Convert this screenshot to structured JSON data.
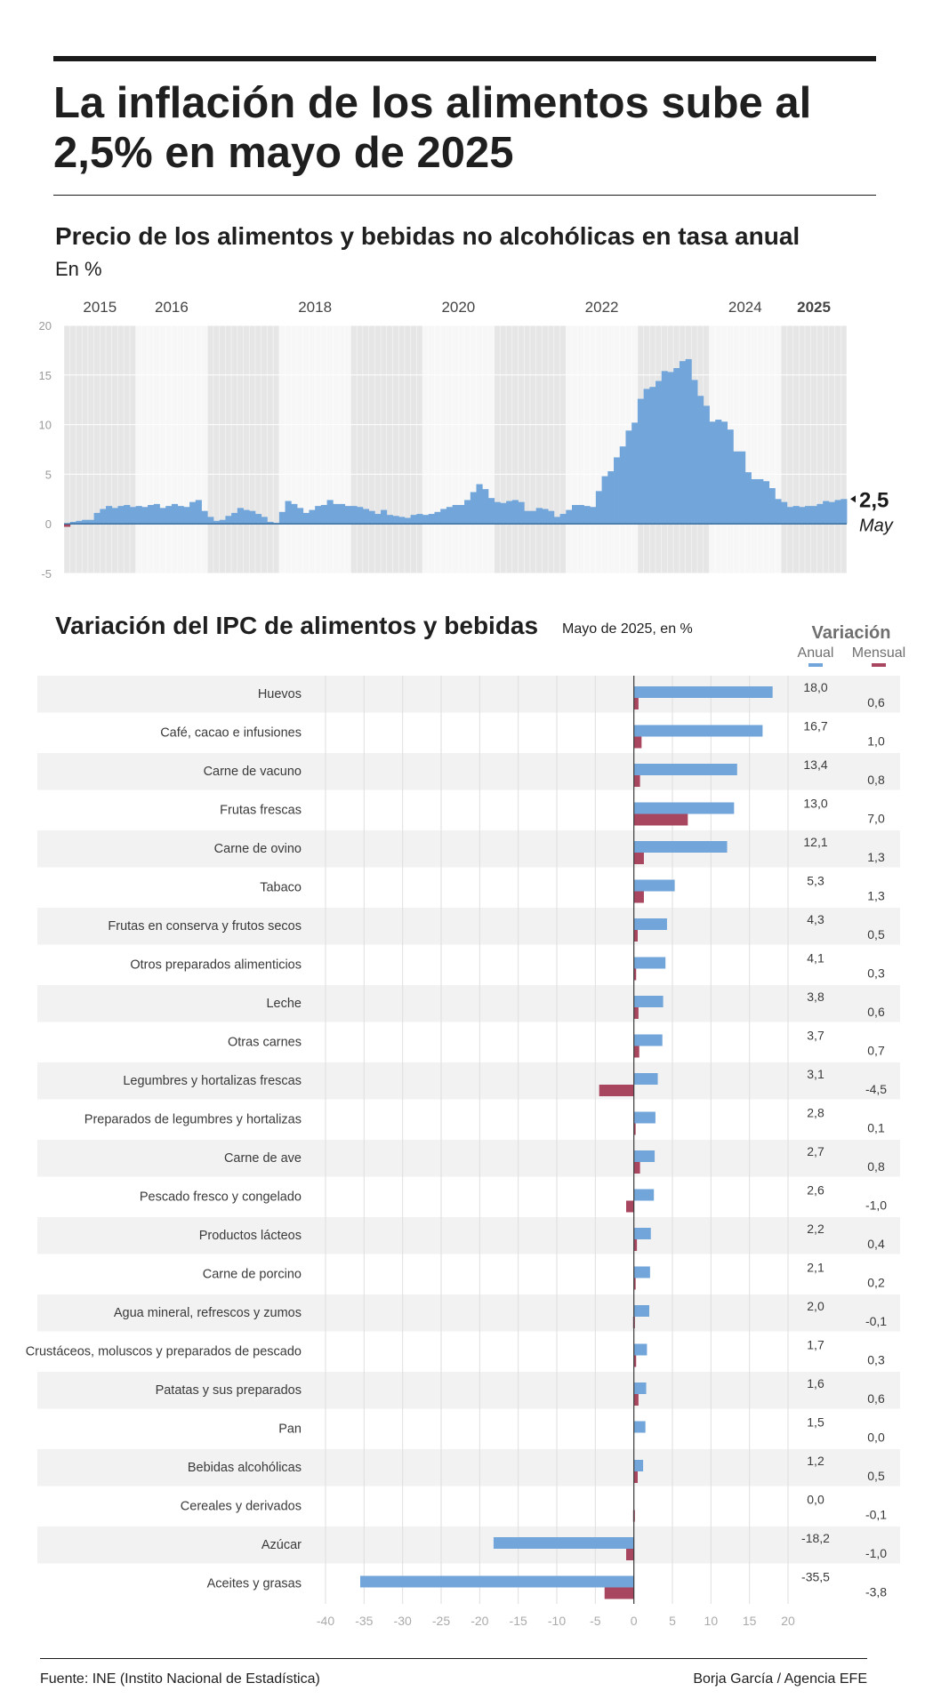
{
  "title": "La inflación de los alimentos sube al 2,5% en mayo de 2025",
  "subtitle": "Precio de los alimentos y bebidas no alcohólicas en tasa anual",
  "unit": "En %",
  "bar_heading": "Variación del IPC de alimentos y bebidas",
  "bar_note": "Mayo de 2025, en %",
  "legend": {
    "title": "Variación",
    "anual": "Anual",
    "mensual": "Mensual"
  },
  "last_value_label": "2,5",
  "last_month_label": "May",
  "source": "Fuente: INE (Instito Nacional de Estadística)",
  "credit": "Borja García / Agencia EFE",
  "colors": {
    "anual": "#72a6db",
    "mensual": "#a8465f",
    "band": "#e6e6e6",
    "row": "#f2f2f2"
  },
  "chart_data": [
    {
      "type": "bar",
      "title": "Precio de los alimentos y bebidas no alcohólicas en tasa anual",
      "ylabel": "En %",
      "ylim": [
        -5,
        20
      ],
      "yticks": [
        20,
        15,
        10,
        5,
        0,
        -5
      ],
      "year_labels": [
        {
          "label": "2015",
          "year": 2015
        },
        {
          "label": "2016",
          "year": 2016
        },
        {
          "label": "2018",
          "year": 2018
        },
        {
          "label": "2020",
          "year": 2020
        },
        {
          "label": "2022",
          "year": 2022
        },
        {
          "label": "2024",
          "year": 2024
        },
        {
          "label": "2025",
          "year": 2025,
          "bold": true
        }
      ],
      "start": "2015-01",
      "end": "2025-05",
      "values": [
        -0.3,
        0.2,
        0.3,
        0.4,
        0.4,
        1.1,
        1.5,
        1.8,
        1.6,
        1.8,
        1.9,
        1.7,
        1.8,
        1.7,
        1.9,
        2.0,
        1.6,
        1.8,
        2.0,
        1.8,
        1.7,
        2.2,
        2.4,
        1.3,
        0.7,
        0.3,
        0.4,
        0.8,
        1.1,
        1.6,
        1.4,
        1.3,
        1.0,
        0.7,
        0.2,
        0.1,
        1.2,
        2.3,
        2.0,
        1.6,
        1.1,
        1.4,
        1.8,
        1.9,
        2.4,
        2.0,
        2.0,
        1.8,
        1.8,
        1.7,
        1.5,
        1.3,
        1.0,
        1.4,
        0.9,
        0.8,
        0.7,
        0.6,
        0.9,
        1.0,
        0.9,
        1.0,
        1.2,
        1.5,
        1.7,
        1.9,
        1.9,
        2.4,
        3.2,
        4.0,
        3.5,
        2.6,
        2.2,
        2.1,
        2.3,
        2.4,
        2.2,
        1.3,
        1.3,
        1.6,
        1.5,
        1.3,
        0.7,
        1.0,
        1.4,
        1.9,
        1.9,
        1.8,
        1.7,
        3.3,
        4.8,
        5.3,
        6.7,
        7.8,
        9.4,
        10.2,
        12.6,
        13.6,
        13.8,
        14.4,
        15.4,
        15.3,
        15.7,
        16.4,
        16.6,
        14.5,
        12.9,
        11.9,
        10.3,
        10.5,
        10.3,
        9.5,
        7.3,
        7.3,
        5.2,
        4.5,
        4.5,
        4.3,
        3.6,
        2.5,
        2.2,
        1.7,
        1.8,
        1.7,
        1.8,
        1.8,
        2.0,
        2.3,
        2.2,
        2.4,
        2.5
      ]
    },
    {
      "type": "bar",
      "title": "Variación del IPC de alimentos y bebidas",
      "subtitle": "Mayo de 2025, en %",
      "xlim": [
        -40,
        20
      ],
      "xticks": [
        -40,
        -35,
        -30,
        -25,
        -20,
        -15,
        -10,
        -5,
        0,
        5,
        10,
        15,
        20
      ],
      "categories": [
        "Huevos",
        "Café, cacao e infusiones",
        "Carne de vacuno",
        "Frutas frescas",
        "Carne de ovino",
        "Tabaco",
        "Frutas en conserva y frutos secos",
        "Otros preparados alimenticios",
        "Leche",
        "Otras carnes",
        "Legumbres y hortalizas frescas",
        "Preparados de legumbres y hortalizas",
        "Carne de ave",
        "Pescado fresco y congelado",
        "Productos lácteos",
        "Carne de porcino",
        "Agua mineral, refrescos y zumos",
        "Crustáceos, moluscos y preparados de pescado",
        "Patatas y sus preparados",
        "Pan",
        "Bebidas alcohólicas",
        "Cereales y derivados",
        "Azúcar",
        "Aceites y grasas"
      ],
      "series": [
        {
          "name": "Anual",
          "values": [
            18.0,
            16.7,
            13.4,
            13.0,
            12.1,
            5.3,
            4.3,
            4.1,
            3.8,
            3.7,
            3.1,
            2.8,
            2.7,
            2.6,
            2.2,
            2.1,
            2.0,
            1.7,
            1.6,
            1.5,
            1.2,
            0.0,
            -18.2,
            -35.5
          ],
          "labels": [
            "18,0",
            "16,7",
            "13,4",
            "13,0",
            "12,1",
            "5,3",
            "4,3",
            "4,1",
            "3,8",
            "3,7",
            "3,1",
            "2,8",
            "2,7",
            "2,6",
            "2,2",
            "2,1",
            "2,0",
            "1,7",
            "1,6",
            "1,5",
            "1,2",
            "0,0",
            "-18,2",
            "-35,5"
          ]
        },
        {
          "name": "Mensual",
          "values": [
            0.6,
            1.0,
            0.8,
            7.0,
            1.3,
            1.3,
            0.5,
            0.3,
            0.6,
            0.7,
            -4.5,
            0.1,
            0.8,
            -1.0,
            0.4,
            0.2,
            -0.1,
            0.3,
            0.6,
            0.0,
            0.5,
            -0.1,
            -1.0,
            -3.8
          ],
          "labels": [
            "0,6",
            "1,0",
            "0,8",
            "7,0",
            "1,3",
            "1,3",
            "0,5",
            "0,3",
            "0,6",
            "0,7",
            "-4,5",
            "0,1",
            "0,8",
            "-1,0",
            "0,4",
            "0,2",
            "-0,1",
            "0,3",
            "0,6",
            "0,0",
            "0,5",
            "-0,1",
            "-1,0",
            "-3,8"
          ]
        }
      ]
    }
  ]
}
